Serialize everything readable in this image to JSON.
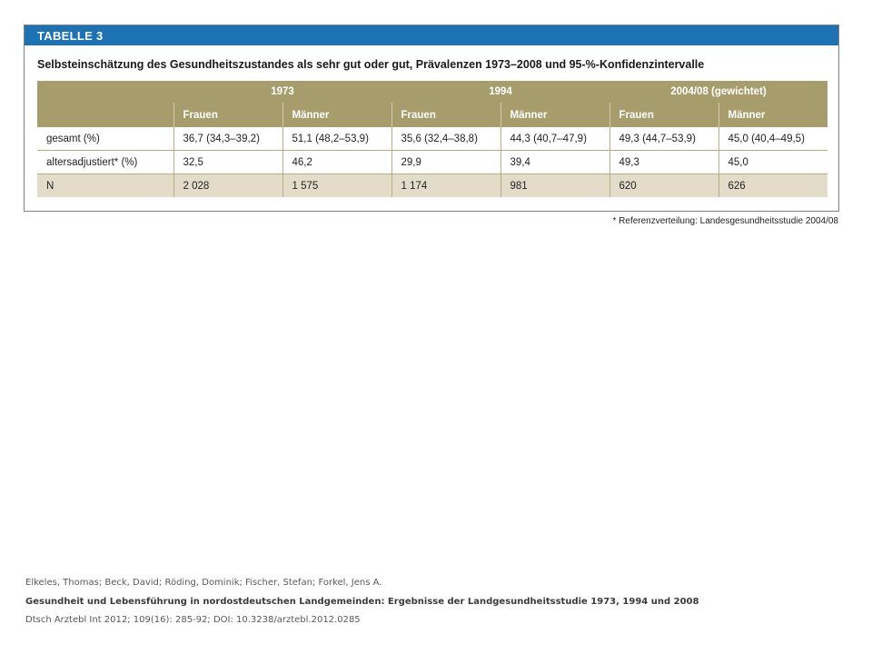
{
  "table": {
    "label": "TABELLE 3",
    "title": "Selbsteinschätzung des Gesundheitszustandes als sehr gut oder gut, Prävalenzen 1973–2008 und 95-%-Konfidenzintervalle",
    "years": [
      "1973",
      "1994",
      "2004/08 (gewichtet)"
    ],
    "sexes": [
      "Frauen",
      "Männer",
      "Frauen",
      "Männer",
      "Frauen",
      "Männer"
    ],
    "rows": [
      {
        "label": "gesamt (%)",
        "cells": [
          "36,7 (34,3–39,2)",
          "51,1 (48,2–53,9)",
          "35,6 (32,4–38,8)",
          "44,3 (40,7–47,9)",
          "49,3 (44,7–53,9)",
          "45,0 (40,4–49,5)"
        ]
      },
      {
        "label": "altersadjustiert* (%)",
        "cells": [
          "32,5",
          "46,2",
          "29,9",
          "39,4",
          "49,3",
          "45,0"
        ]
      },
      {
        "label": "N",
        "cells": [
          "2 028",
          "1 575",
          "1 174",
          "981",
          "620",
          "626"
        ]
      }
    ],
    "footnote": "* Referenzverteilung: Landesgesundheitsstudie 2004/08"
  },
  "citation": {
    "authors": "Elkeles, Thomas; Beck, David; Röding, Dominik; Fischer, Stefan; Forkel, Jens A.",
    "title": "Gesundheit und Lebensführung in nordostdeutschen Landgemeinden: Ergebnisse der Landgesundheitsstudie 1973, 1994 und 2008",
    "source": "Dtsch Arztebl Int 2012; 109(16): 285-92; DOI: 10.3238/arztebl.2012.0285"
  },
  "colors": {
    "header_blue": "#1d72b3",
    "table_header": "#a69c6c",
    "row_shade": "#e3dcc8"
  }
}
